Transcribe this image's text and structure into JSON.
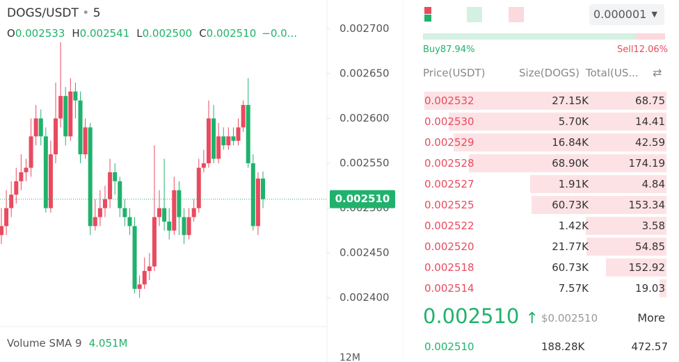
{
  "header": {
    "pair": "DOGS/USDT",
    "interval": "5",
    "ohlc": [
      {
        "key": "O",
        "value": "0.002533"
      },
      {
        "key": "H",
        "value": "0.002541"
      },
      {
        "key": "L",
        "value": "0.002500"
      },
      {
        "key": "C",
        "value": "0.002510"
      }
    ],
    "change": "−0.0..."
  },
  "chart_data": {
    "type": "candlestick",
    "open": [
      0.00247,
      0.00248,
      0.0025,
      0.002515,
      0.00253,
      0.00254,
      0.002545,
      0.00258,
      0.0026,
      0.00258,
      0.0025,
      0.00256,
      0.0026,
      0.002625,
      0.00258,
      0.00263,
      0.00262,
      0.00256,
      0.00259,
      0.00248,
      0.00249,
      0.0025,
      0.00251,
      0.00254,
      0.00253,
      0.0025,
      0.00249,
      0.00248,
      0.00241,
      0.002415,
      0.00243,
      0.002435,
      0.00249,
      0.0025,
      0.002485,
      0.002475,
      0.00252,
      0.00249,
      0.00247,
      0.00249,
      0.0025,
      0.002545,
      0.00255,
      0.0026,
      0.002555,
      0.00258,
      0.00257,
      0.00258,
      0.002575,
      0.00259,
      0.002615,
      0.00255,
      0.00248,
      0.002533
    ],
    "high": [
      0.0025,
      0.00252,
      0.00253,
      0.002545,
      0.00256,
      0.002555,
      0.0026,
      0.002615,
      0.00261,
      0.00259,
      0.002575,
      0.00264,
      0.002685,
      0.002635,
      0.002645,
      0.00264,
      0.00263,
      0.0026,
      0.002595,
      0.00251,
      0.00252,
      0.002525,
      0.002555,
      0.00255,
      0.002535,
      0.00251,
      0.0025,
      0.00249,
      0.002425,
      0.002445,
      0.00245,
      0.00257,
      0.00252,
      0.002555,
      0.0025,
      0.002535,
      0.00253,
      0.0025,
      0.0025,
      0.00251,
      0.002555,
      0.002565,
      0.00262,
      0.002615,
      0.002595,
      0.00259,
      0.00259,
      0.00259,
      0.0026,
      0.00262,
      0.002645,
      0.00256,
      0.00254,
      0.002541
    ],
    "low": [
      0.00246,
      0.00247,
      0.00249,
      0.002505,
      0.00252,
      0.00253,
      0.002535,
      0.00257,
      0.00257,
      0.002495,
      0.002495,
      0.00255,
      0.00259,
      0.00257,
      0.002575,
      0.0026,
      0.00255,
      0.002555,
      0.00247,
      0.002475,
      0.00248,
      0.00249,
      0.0025,
      0.002515,
      0.00249,
      0.00248,
      0.00247,
      0.002405,
      0.0024,
      0.00241,
      0.00242,
      0.00243,
      0.00248,
      0.002475,
      0.002465,
      0.00247,
      0.00247,
      0.00246,
      0.002465,
      0.002485,
      0.002495,
      0.00254,
      0.002545,
      0.00255,
      0.00255,
      0.002565,
      0.002565,
      0.00257,
      0.00257,
      0.002585,
      0.002545,
      0.002475,
      0.00247,
      0.0025
    ],
    "close": [
      0.00248,
      0.0025,
      0.002515,
      0.00253,
      0.00254,
      0.002545,
      0.00258,
      0.0026,
      0.00258,
      0.0025,
      0.00256,
      0.0026,
      0.002625,
      0.00258,
      0.00263,
      0.00262,
      0.00256,
      0.00259,
      0.00248,
      0.00249,
      0.0025,
      0.00251,
      0.00254,
      0.00253,
      0.0025,
      0.00249,
      0.00248,
      0.00241,
      0.002415,
      0.00243,
      0.002435,
      0.00249,
      0.0025,
      0.002485,
      0.002475,
      0.00252,
      0.00249,
      0.00247,
      0.00249,
      0.0025,
      0.002545,
      0.00255,
      0.0026,
      0.002555,
      0.00258,
      0.00257,
      0.00258,
      0.002575,
      0.00259,
      0.002615,
      0.00255,
      0.00248,
      0.002533,
      0.00251
    ],
    "up_color": "#e84a5f",
    "down_color": "#20b26c",
    "ylim": [
      0.002368,
      0.002732
    ],
    "yticks": [
      {
        "value": 0.0027,
        "label": "0.002700"
      },
      {
        "value": 0.00265,
        "label": "0.002650"
      },
      {
        "value": 0.0026,
        "label": "0.002600"
      },
      {
        "value": 0.00255,
        "label": "0.002550"
      },
      {
        "value": 0.0025,
        "label": "0.002500"
      },
      {
        "value": 0.00245,
        "label": "0.002450"
      },
      {
        "value": 0.0024,
        "label": "0.002400"
      }
    ],
    "last": {
      "value": 0.00251,
      "label": "0.002510"
    },
    "volume": {
      "label": "Volume SMA 9",
      "value": "4.051M",
      "axis_label": "12M"
    }
  },
  "orderbook": {
    "tick": "0.000001",
    "buy": {
      "value": 87.94,
      "label": "Buy87.94%"
    },
    "sell": {
      "value": 12.06,
      "label": "Sell12.06%"
    },
    "columns": [
      "Price(USDT)",
      "Size(DOGS)",
      "Total(US..."
    ],
    "asks": [
      {
        "price": "0.002532",
        "size": "27.15K",
        "total": 68.75
      },
      {
        "price": "0.002530",
        "size": "5.70K",
        "total": 14.41
      },
      {
        "price": "0.002529",
        "size": "16.84K",
        "total": 42.59
      },
      {
        "price": "0.002528",
        "size": "68.90K",
        "total": 174.19
      },
      {
        "price": "0.002527",
        "size": "1.91K",
        "total": 4.84
      },
      {
        "price": "0.002525",
        "size": "60.73K",
        "total": 153.34
      },
      {
        "price": "0.002522",
        "size": "1.42K",
        "total": 3.58
      },
      {
        "price": "0.002520",
        "size": "21.77K",
        "total": 54.85
      },
      {
        "price": "0.002518",
        "size": "60.73K",
        "total": 152.92
      },
      {
        "price": "0.002514",
        "size": "7.57K",
        "total": 19.03
      }
    ],
    "last": {
      "price": "0.002510",
      "arrow": "↑",
      "usd": "$0.002510",
      "more": "More"
    },
    "trade": {
      "price": "0.002510",
      "size": "188.28K",
      "total": "472.57"
    }
  }
}
